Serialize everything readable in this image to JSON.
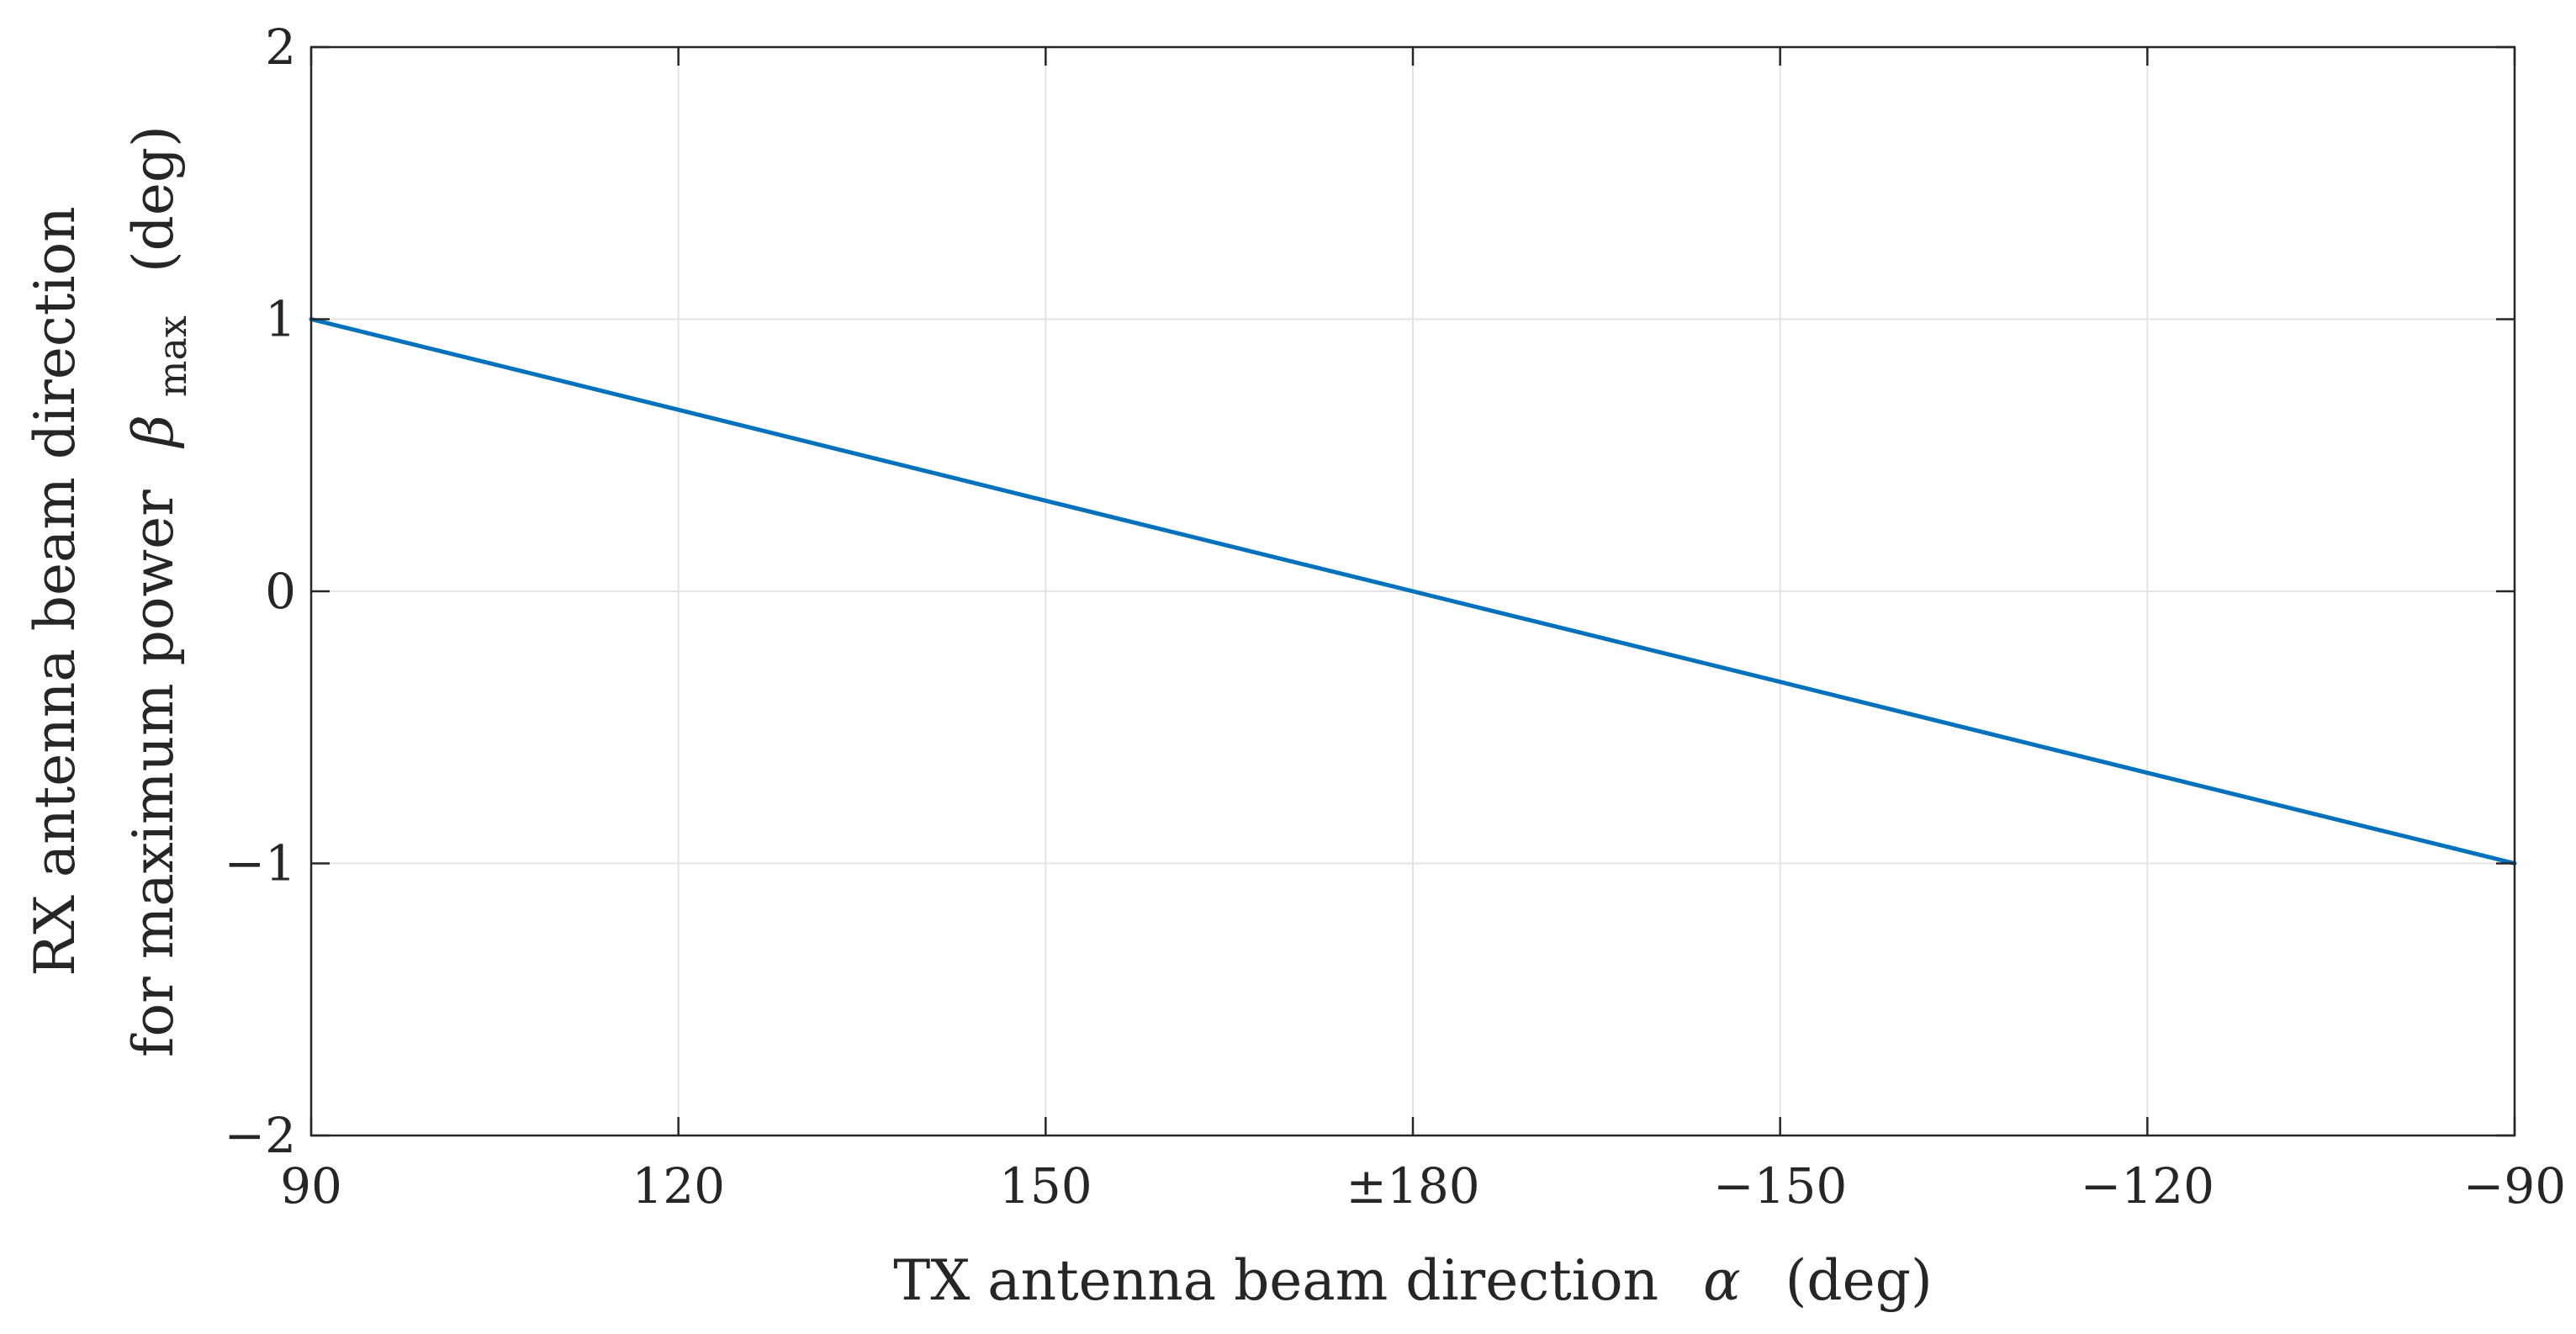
{
  "chart_data": {
    "type": "line",
    "title": "",
    "xlabel": {
      "prefix": "TX antenna beam direction",
      "symbol": "α",
      "suffix": "(deg)"
    },
    "ylabel": {
      "line1": "RX antenna beam direction",
      "line2_prefix": "for maximum power",
      "symbol": "β",
      "subscript": "max",
      "suffix": "(deg)"
    },
    "x_ticks": [
      "90",
      "120",
      "150",
      "±180",
      "−150",
      "−120",
      "−90"
    ],
    "y_ticks": [
      "2",
      "1",
      "0",
      "−1",
      "−2"
    ],
    "x_tick_values": [
      0,
      1,
      2,
      3,
      4,
      5,
      6
    ],
    "y_tick_values": [
      2,
      1,
      0,
      -1,
      -2
    ],
    "xlim": [
      0,
      6
    ],
    "ylim": [
      -2,
      2
    ],
    "grid": true,
    "series": [
      {
        "name": "beta_max",
        "color": "#0072BD",
        "x": [
          0,
          1,
          2,
          3,
          4,
          5,
          6
        ],
        "y": [
          1,
          0.667,
          0.333,
          0,
          -0.333,
          -0.667,
          -1
        ]
      }
    ]
  }
}
